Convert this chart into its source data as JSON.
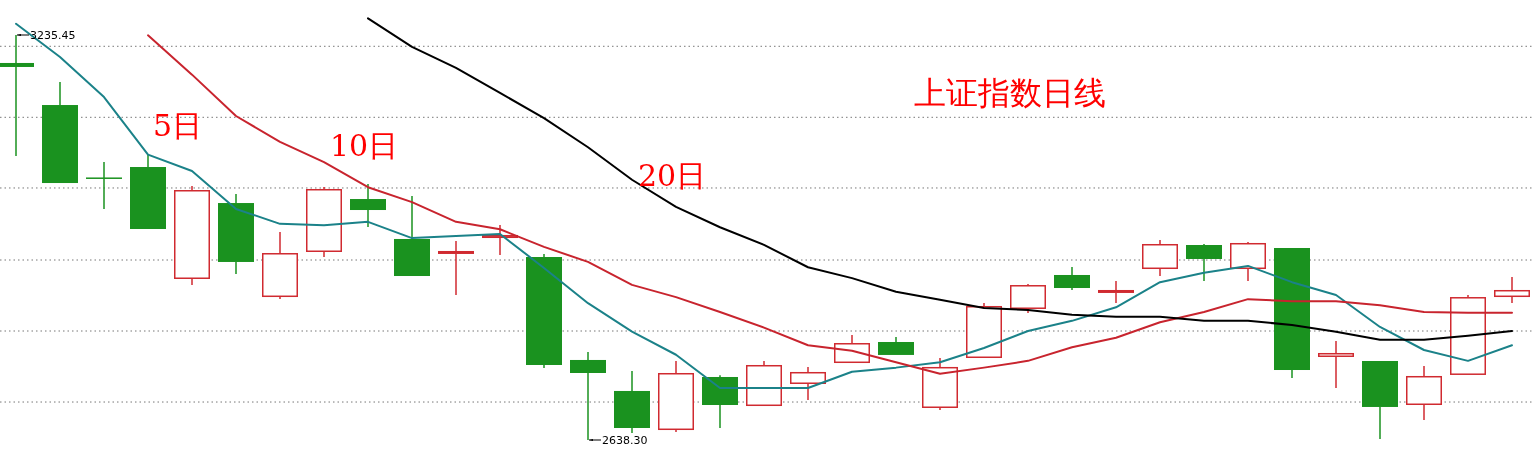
{
  "chart_data": {
    "type": "candlestick",
    "title": "上证指数日线",
    "categories": [
      null,
      null,
      null,
      null,
      null,
      null,
      null,
      null,
      null,
      null,
      null,
      null,
      null,
      null,
      null,
      null,
      null,
      null,
      null,
      null,
      null,
      null,
      null,
      null,
      null,
      null,
      null,
      null,
      null,
      null,
      null,
      null,
      null,
      null,
      null
    ],
    "ohlc": [
      [
        3194.2,
        3235.45,
        3057.0,
        3188.3
      ],
      [
        3132.2,
        3166.2,
        3017.2,
        3017.2
      ],
      [
        3024.6,
        3048.2,
        2978.9,
        3024.0
      ],
      [
        3040.8,
        3060.0,
        2949.4,
        2949.4
      ],
      [
        2875.7,
        3012.8,
        2866.8,
        3006.9
      ],
      [
        2987.7,
        3001.0,
        2883.1,
        2900.8
      ],
      [
        2849.1,
        2945.0,
        2846.2,
        2914.0
      ],
      [
        2915.5,
        3011.3,
        2908.1,
        3008.4
      ],
      [
        2993.6,
        3015.8,
        2952.4,
        2977.4
      ],
      [
        2934.7,
        2998.1,
        2880.1,
        2880.1
      ],
      [
        2912.6,
        2931.7,
        2852.1,
        2917.0
      ],
      [
        2936.1,
        2955.3,
        2911.1,
        2940.6
      ],
      [
        2908.1,
        2912.6,
        2744.5,
        2748.9
      ],
      [
        2756.3,
        2768.0,
        2638.3,
        2737.1
      ],
      [
        2710.6,
        2740.0,
        2648.6,
        2656.0
      ],
      [
        2653.0,
        2754.8,
        2650.1,
        2737.1
      ],
      [
        2731.2,
        2733.7,
        2656.0,
        2689.9
      ],
      [
        2688.4,
        2754.8,
        2688.4,
        2748.9
      ],
      [
        2720.9,
        2746.0,
        2697.3,
        2738.6
      ],
      [
        2751.8,
        2793.1,
        2751.8,
        2781.3
      ],
      [
        2782.8,
        2790.2,
        2763.7,
        2763.7
      ],
      [
        2685.5,
        2759.2,
        2682.6,
        2746.0
      ],
      [
        2759.2,
        2840.3,
        2759.2,
        2835.9
      ],
      [
        2831.5,
        2868.3,
        2825.6,
        2866.8
      ],
      [
        2881.6,
        2893.4,
        2859.5,
        2862.4
      ],
      [
        2855.1,
        2872.7,
        2840.3,
        2859.5
      ],
      [
        2890.4,
        2933.2,
        2880.1,
        2927.3
      ],
      [
        2925.8,
        2927.3,
        2872.7,
        2905.2
      ],
      [
        2890.4,
        2930.3,
        2872.7,
        2928.8
      ],
      [
        2921.4,
        2921.4,
        2729.7,
        2741.5
      ],
      [
        2760.7,
        2784.3,
        2715.0,
        2766.6
      ],
      [
        2754.8,
        2754.8,
        2639.8,
        2687.0
      ],
      [
        2689.9,
        2747.4,
        2667.8,
        2732.7
      ],
      [
        2734.2,
        2852.1,
        2734.2,
        2849.1
      ],
      [
        2849.1,
        2878.6,
        2840.3,
        2859.5
      ]
    ],
    "colors": [
      "#1a921f",
      "#1a921f",
      "#1a921f",
      "#1a921f",
      "#d02a30",
      "#1a921f",
      "#d02a30",
      "#d02a30",
      "#1a921f",
      "#1a921f",
      "#d02a30",
      "#d02a30",
      "#1a921f",
      "#1a921f",
      "#1a921f",
      "#d02a30",
      "#1a921f",
      "#d02a30",
      "#d02a30",
      "#d02a30",
      "#1a921f",
      "#d02a30",
      "#d02a30",
      "#d02a30",
      "#1a921f",
      "#d02a30",
      "#d02a30",
      "#1a921f",
      "#d02a30",
      "#1a921f",
      "#d02a30",
      "#1a921f",
      "#d02a30",
      "#d02a30",
      "#d02a30"
    ],
    "series": [
      {
        "name": "5日",
        "type": "line",
        "color": "#1b8289",
        "values": [
          3252,
          3203,
          3144,
          3059,
          3035,
          2979,
          2957,
          2955,
          2960,
          2936,
          2939,
          2942,
          2892,
          2840,
          2798,
          2764,
          2715,
          2715,
          2715,
          2739,
          2745,
          2753,
          2774,
          2799,
          2814,
          2834,
          2871,
          2885,
          2895,
          2871,
          2852,
          2805,
          2771,
          2755,
          2778
        ]
      },
      {
        "name": "10日",
        "type": "line",
        "color": "#c8242e",
        "values": [
          null,
          null,
          null,
          3235,
          3177,
          3116,
          3078,
          3048,
          3011,
          2989,
          2960,
          2949,
          2923,
          2901,
          2867,
          2849,
          2827,
          2804,
          2778,
          2770,
          2753,
          2736,
          2745,
          2755,
          2775,
          2789,
          2812,
          2827,
          2846,
          2843,
          2843,
          2837,
          2827,
          2826,
          2826
        ]
      },
      {
        "name": "20日",
        "type": "line",
        "color": "#000000",
        "values": [
          null,
          null,
          null,
          null,
          null,
          null,
          null,
          null,
          3260,
          3218,
          3187,
          3150,
          3113,
          3070,
          3022,
          2982,
          2952,
          2926,
          2893,
          2877,
          2857,
          2845,
          2833,
          2830,
          2823,
          2820,
          2820,
          2814,
          2814,
          2808,
          2798,
          2786,
          2786,
          2792,
          2799
        ]
      }
    ],
    "annotations": [
      "3235.45",
      "2638.30"
    ],
    "yticks": [
      {
        "value": 3218.8,
        "label": null
      },
      {
        "value": 3114.1,
        "label": null
      },
      {
        "value": 3009.9,
        "label": null
      },
      {
        "value": 2903.7,
        "label": null
      },
      {
        "value": 2799.0,
        "label": null
      },
      {
        "value": 2694.3,
        "label": null
      }
    ],
    "grid": "y"
  }
}
